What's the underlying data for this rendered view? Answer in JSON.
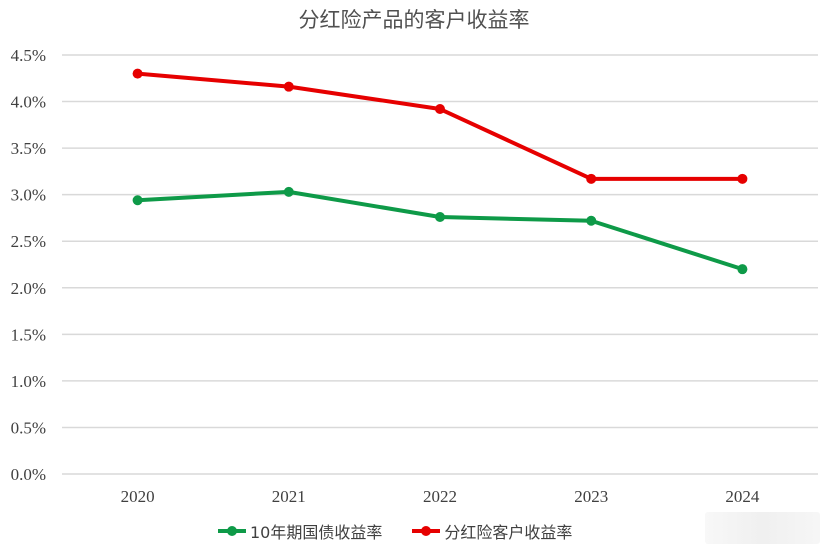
{
  "chart_data": {
    "type": "line",
    "title": "分红险产品的客户收益率",
    "xlabel": "",
    "ylabel": "",
    "categories": [
      "2020",
      "2021",
      "2022",
      "2023",
      "2024"
    ],
    "series": [
      {
        "name": "10年期国债收益率",
        "color": "#0e9a48",
        "values": [
          2.94,
          3.03,
          2.76,
          2.72,
          2.2
        ]
      },
      {
        "name": "分红险客户收益率",
        "color": "#e60000",
        "values": [
          4.3,
          4.16,
          3.92,
          3.17,
          3.17
        ]
      }
    ],
    "yticks": [
      "0.0%",
      "0.5%",
      "1.0%",
      "1.5%",
      "2.0%",
      "2.5%",
      "3.0%",
      "3.5%",
      "4.0%",
      "4.5%"
    ],
    "ylim": [
      0,
      4.5
    ],
    "grid": true,
    "legend_position": "bottom"
  },
  "title": "分红险产品的客户收益率",
  "legend": [
    {
      "label": "10年期国债收益率",
      "color": "#0e9a48"
    },
    {
      "label": "分红险客户收益率",
      "color": "#e60000"
    }
  ]
}
